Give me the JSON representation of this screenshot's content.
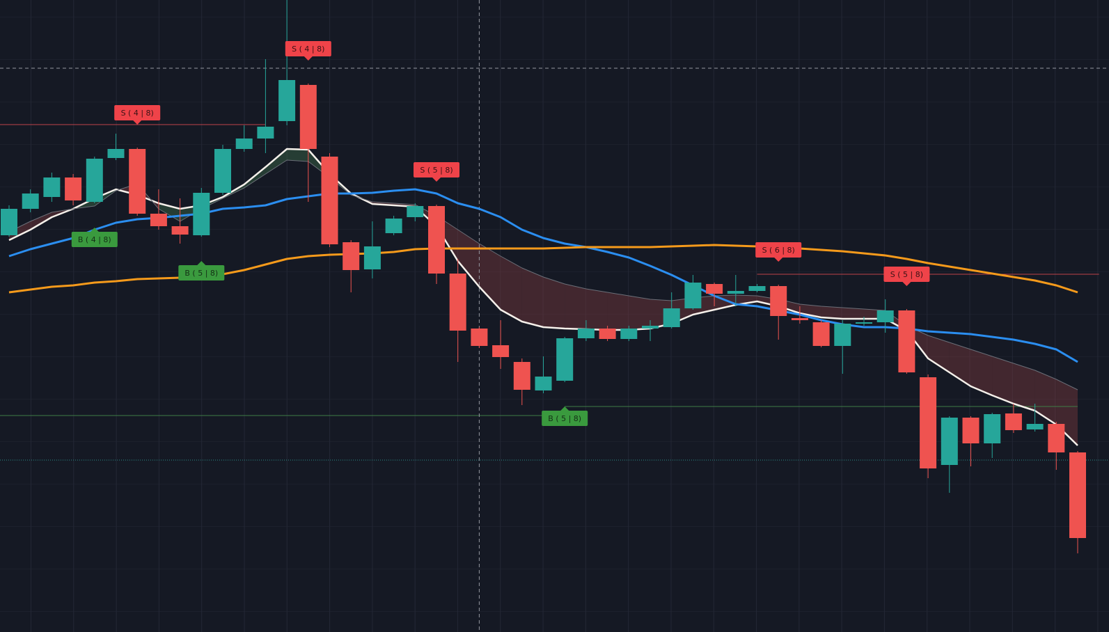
{
  "chart_data": {
    "type": "candlestick",
    "ylim": [
      0,
      894
    ],
    "up_color": "#26a69a",
    "down_color": "#ef5350",
    "band_up_color": "#3c6b4a",
    "band_down_color": "#7a3a3e",
    "open": [
      556,
      594,
      611,
      639,
      604,
      667,
      680,
      587,
      569,
      556,
      617,
      680,
      695,
      720,
      772,
      669,
      546,
      507,
      559,
      582,
      598,
      501,
      422,
      398,
      374,
      333,
      347,
      408,
      422,
      407,
      422,
      424,
      451,
      486,
      472,
      476,
      483,
      437,
      431,
      397,
      429,
      431,
      448,
      352,
      226,
      294,
      257,
      300,
      277,
      285,
      244
    ],
    "high": [
      599,
      622,
      646,
      644,
      669,
      702,
      682,
      622,
      609,
      624,
      686,
      714,
      809,
      894,
      774,
      674,
      549,
      576,
      584,
      602,
      600,
      522,
      424,
      434,
      379,
      382,
      410,
      434,
      426,
      426,
      434,
      474,
      499,
      488,
      499,
      486,
      485,
      454,
      434,
      434,
      439,
      464,
      450,
      356,
      296,
      296,
      301,
      314,
      314,
      288,
      246
    ],
    "low": [
      554,
      589,
      604,
      599,
      602,
      664,
      584,
      564,
      544,
      554,
      614,
      676,
      674,
      714,
      604,
      539,
      474,
      494,
      556,
      576,
      486,
      374,
      394,
      364,
      312,
      329,
      345,
      404,
      404,
      404,
      404,
      422,
      449,
      454,
      454,
      474,
      406,
      429,
      395,
      357,
      426,
      416,
      357,
      207,
      186,
      224,
      236,
      272,
      274,
      219,
      99
    ],
    "close": [
      594,
      616,
      639,
      606,
      666,
      680,
      587,
      569,
      557,
      617,
      680,
      695,
      712,
      779,
      680,
      543,
      506,
      540,
      580,
      598,
      501,
      419,
      397,
      381,
      334,
      353,
      408,
      422,
      407,
      422,
      426,
      451,
      488,
      472,
      476,
      483,
      440,
      434,
      397,
      429,
      431,
      448,
      359,
      221,
      294,
      257,
      299,
      276,
      285,
      244,
      121
    ],
    "series": [
      {
        "name": "fast",
        "color": "#f5f0ea",
        "values": [
          549,
          564,
          582,
          594,
          609,
          622,
          614,
          602,
          594,
          599,
          611,
          629,
          654,
          680,
          679,
          644,
          616,
          601,
          599,
          597,
          569,
          519,
          482,
          449,
          432,
          424,
          422,
          421,
          420,
          420,
          422,
          429,
          442,
          449,
          456,
          461,
          454,
          444,
          438,
          436,
          436,
          436,
          419,
          379,
          359,
          339,
          326,
          314,
          304,
          284,
          254
        ]
      },
      {
        "name": "band",
        "color": "#6b6f78",
        "values": [
          561,
          576,
          589,
          594,
          598,
          620,
          630,
          594,
          576,
          594,
          609,
          624,
          644,
          664,
          662,
          639,
          614,
          604,
          602,
          600,
          584,
          564,
          544,
          526,
          509,
          496,
          486,
          479,
          474,
          469,
          464,
          462,
          466,
          469,
          470,
          469,
          464,
          457,
          454,
          452,
          450,
          448,
          426,
          412,
          402,
          392,
          382,
          372,
          362,
          349,
          334
        ]
      },
      {
        "name": "mid",
        "color": "#2b8ef0",
        "values": [
          526,
          536,
          544,
          552,
          564,
          574,
          579,
          581,
          584,
          587,
          594,
          596,
          599,
          608,
          612,
          616,
          616,
          617,
          620,
          622,
          616,
          602,
          594,
          582,
          564,
          552,
          544,
          539,
          532,
          524,
          512,
          499,
          484,
          469,
          457,
          454,
          448,
          442,
          434,
          428,
          424,
          424,
          422,
          418,
          416,
          414,
          410,
          406,
          400,
          392,
          374
        ]
      },
      {
        "name": "slow",
        "color": "#f59a1b",
        "values": [
          474,
          478,
          482,
          484,
          488,
          490,
          493,
          494,
          495,
          496,
          500,
          506,
          514,
          522,
          526,
          528,
          529,
          530,
          532,
          536,
          537,
          537,
          537,
          537,
          537,
          537,
          538,
          539,
          539,
          539,
          539,
          540,
          541,
          542,
          541,
          540,
          539,
          537,
          535,
          533,
          530,
          527,
          522,
          516,
          511,
          506,
          501,
          496,
          491,
          484,
          474
        ]
      }
    ],
    "annotations": [
      {
        "text": "S ( 4 | 8)",
        "index": 14,
        "side": "above"
      },
      {
        "text": "S ( 4 | 8)",
        "index": 6,
        "side": "above"
      },
      {
        "text": "B ( 4 | 8)",
        "index": 4,
        "side": "below"
      },
      {
        "text": "B ( 5 | 8)",
        "index": 9,
        "side": "below"
      },
      {
        "text": "S ( 5 | 8)",
        "index": 20,
        "side": "above"
      },
      {
        "text": "B ( 5 | 8)",
        "index": 26,
        "side": "below"
      },
      {
        "text": "S ( 6 | 8)",
        "index": 36,
        "side": "above"
      },
      {
        "text": "S ( 5 | 8)",
        "index": 42,
        "side": "above"
      }
    ],
    "levels": [
      {
        "value": 715,
        "from": -1,
        "to": 12,
        "color": "#c0434a"
      },
      {
        "value": 297,
        "from": -1,
        "to": 25,
        "color": "#3f7d46"
      },
      {
        "value": 310,
        "from": 26,
        "to": 50,
        "color": "#3f7d46"
      },
      {
        "value": 500,
        "from": 35,
        "to": 51,
        "color": "#c0434a"
      }
    ],
    "crosshair": {
      "index": 22,
      "value": 796
    },
    "price_line": 233
  }
}
